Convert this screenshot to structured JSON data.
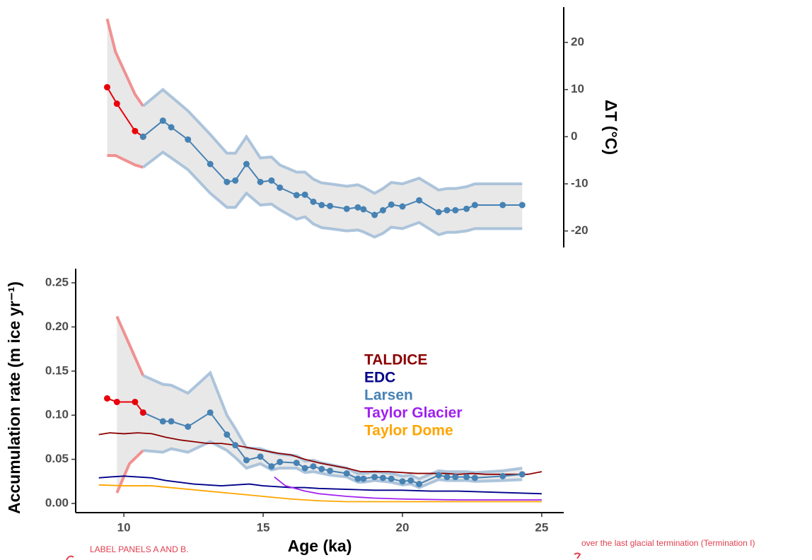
{
  "chart_data": [
    {
      "type": "line",
      "ylabel": "ΔT (°C)",
      "yaxis_side": "right",
      "show_x_axis": false,
      "xlim": [
        8.27,
        25.79
      ],
      "ylim": [
        -23.5,
        27.5
      ],
      "yticks": [
        -20,
        -10,
        0,
        10,
        20
      ],
      "bands": [
        {
          "color": "#f07878",
          "x": [
            9.4,
            9.7,
            10.4,
            10.69
          ],
          "upper": [
            25,
            18,
            9,
            6.5
          ],
          "lower": [
            -4,
            -4,
            -6,
            -6.5
          ]
        },
        {
          "color": "#9ab8d4",
          "x": [
            10.69,
            11.4,
            11.7,
            12.3,
            13.1,
            13.7,
            14.0,
            14.4,
            14.9,
            15.3,
            15.6,
            16.2,
            16.5,
            16.8,
            17.1,
            17.4,
            18.0,
            18.4,
            18.6,
            19.0,
            19.3,
            19.6,
            20.0,
            20.6,
            21.3,
            21.6,
            21.9,
            22.3,
            22.6,
            23.6,
            24.3
          ],
          "upper": [
            6.5,
            10,
            8.5,
            5.5,
            0.5,
            -3.5,
            -3.5,
            0,
            -4.5,
            -4.3,
            -6,
            -7.5,
            -7.5,
            -9,
            -9.8,
            -10,
            -10.5,
            -10.2,
            -10.7,
            -12,
            -11,
            -9.7,
            -10,
            -8.8,
            -11.3,
            -11,
            -11,
            -10.6,
            -10,
            -10,
            -10
          ],
          "lower": [
            -6.5,
            -3.3,
            -4.5,
            -7,
            -12,
            -15,
            -15,
            -12,
            -14.5,
            -14.3,
            -15.5,
            -17.5,
            -17,
            -18.5,
            -19.3,
            -19.5,
            -20,
            -19.8,
            -20.2,
            -21.3,
            -20.5,
            -19.2,
            -19.5,
            -18.2,
            -20.8,
            -20.3,
            -20.3,
            -20,
            -19.5,
            -19.5,
            -19.5
          ]
        }
      ],
      "series": [
        {
          "color": "#e8000b",
          "markers": true,
          "x": [
            9.4,
            9.75,
            10.4,
            10.69
          ],
          "values": [
            10.5,
            7,
            1.2,
            0
          ]
        },
        {
          "color": "#4682b4",
          "markers": true,
          "x": [
            10.69,
            11.4,
            11.7,
            12.3,
            13.1,
            13.7,
            14.0,
            14.4,
            14.9,
            15.3,
            15.6,
            16.2,
            16.5,
            16.8,
            17.1,
            17.4,
            18.0,
            18.4,
            18.6,
            19.0,
            19.3,
            19.6,
            20.0,
            20.6,
            21.3,
            21.6,
            21.9,
            22.3,
            22.6,
            23.6,
            24.3
          ],
          "values": [
            0,
            3.4,
            2,
            -0.6,
            -5.8,
            -9.6,
            -9.3,
            -5.8,
            -9.6,
            -9.3,
            -10.8,
            -12.4,
            -12.3,
            -13.8,
            -14.5,
            -14.7,
            -15.3,
            -15,
            -15.4,
            -16.6,
            -15.6,
            -14.4,
            -14.8,
            -13.5,
            -16,
            -15.6,
            -15.6,
            -15.3,
            -14.5,
            -14.5,
            -14.5
          ]
        }
      ]
    },
    {
      "type": "line",
      "xlabel": "Age (ka)",
      "ylabel": "Accumulation rate (m ice yr⁻¹)",
      "yaxis_side": "left",
      "show_x_axis": true,
      "xlim": [
        8.27,
        25.79
      ],
      "ylim": [
        -0.0104,
        0.266
      ],
      "xticks": [
        10,
        15,
        20,
        25
      ],
      "yticks": [
        {
          "value": 0,
          "label": "0.00"
        },
        0.05,
        {
          "value": 0.1,
          "label": "0.10"
        },
        0.15,
        {
          "value": 0.2,
          "label": "0.20"
        },
        0.25
      ],
      "bands": [
        {
          "color": "#f07878",
          "x": [
            9.75,
            10.2,
            10.69
          ],
          "upper": [
            0.212,
            0.18,
            0.145
          ],
          "lower": [
            0.012,
            0.045,
            0.06
          ]
        },
        {
          "color": "#9ab8d4",
          "x": [
            10.69,
            11.4,
            11.7,
            12.3,
            13.1,
            13.7,
            14.0,
            14.4,
            14.9,
            15.3,
            15.6,
            16.2,
            16.5,
            16.8,
            17.1,
            17.4,
            18.0,
            18.4,
            18.6,
            19.0,
            19.3,
            19.6,
            20.0,
            20.3,
            20.6,
            21.3,
            21.6,
            21.9,
            22.3,
            22.6,
            23.6,
            24.3
          ],
          "upper": [
            0.145,
            0.135,
            0.134,
            0.125,
            0.148,
            0.1,
            0.085,
            0.063,
            0.062,
            0.058,
            0.056,
            0.054,
            0.048,
            0.049,
            0.046,
            0.044,
            0.04,
            0.034,
            0.034,
            0.036,
            0.035,
            0.034,
            0.031,
            0.032,
            0.028,
            0.037,
            0.036,
            0.036,
            0.036,
            0.035,
            0.037,
            0.04
          ],
          "lower": [
            0.06,
            0.058,
            0.062,
            0.058,
            0.07,
            0.06,
            0.052,
            0.04,
            0.045,
            0.038,
            0.04,
            0.04,
            0.035,
            0.036,
            0.034,
            0.032,
            0.03,
            0.024,
            0.024,
            0.026,
            0.025,
            0.024,
            0.021,
            0.022,
            0.018,
            0.027,
            0.026,
            0.026,
            0.026,
            0.025,
            0.026,
            0.027
          ]
        }
      ],
      "series": [
        {
          "name": "TALDICE",
          "color": "#8b0000",
          "markers": false,
          "x": [
            9.1,
            9.5,
            10,
            10.5,
            11,
            11.5,
            12,
            12.5,
            13,
            13.5,
            14,
            14.5,
            15,
            15.5,
            16,
            16.5,
            17,
            17.5,
            18,
            18.5,
            19,
            19.5,
            20,
            20.5,
            21,
            21.5,
            22,
            22.5,
            23,
            23.5,
            24,
            24.5,
            25
          ],
          "values": [
            0.078,
            0.08,
            0.079,
            0.08,
            0.079,
            0.075,
            0.072,
            0.07,
            0.068,
            0.068,
            0.066,
            0.063,
            0.06,
            0.057,
            0.055,
            0.05,
            0.046,
            0.043,
            0.04,
            0.036,
            0.036,
            0.036,
            0.035,
            0.034,
            0.034,
            0.034,
            0.033,
            0.034,
            0.033,
            0.033,
            0.033,
            0.033,
            0.036
          ]
        },
        {
          "name": "EDC",
          "color": "#00008b",
          "markers": false,
          "x": [
            9.1,
            9.5,
            10,
            10.5,
            11,
            11.5,
            12,
            12.5,
            13,
            13.5,
            14,
            14.5,
            15,
            15.5,
            16,
            16.5,
            17,
            18,
            19,
            20,
            21,
            22,
            23,
            24,
            25
          ],
          "values": [
            0.029,
            0.03,
            0.031,
            0.03,
            0.029,
            0.026,
            0.024,
            0.022,
            0.021,
            0.02,
            0.021,
            0.022,
            0.02,
            0.019,
            0.018,
            0.018,
            0.017,
            0.016,
            0.015,
            0.015,
            0.014,
            0.014,
            0.013,
            0.012,
            0.011
          ]
        },
        {
          "name": "Larsen",
          "color": "#4682b4",
          "markers": true,
          "x": [
            10.69,
            11.4,
            11.7,
            12.3,
            13.1,
            13.7,
            14.0,
            14.4,
            14.9,
            15.3,
            15.6,
            16.2,
            16.5,
            16.8,
            17.1,
            17.4,
            18.0,
            18.4,
            18.6,
            19.0,
            19.3,
            19.6,
            20.0,
            20.3,
            20.6,
            21.3,
            21.6,
            21.9,
            22.3,
            22.6,
            23.6,
            24.3
          ],
          "values": [
            0.103,
            0.093,
            0.093,
            0.087,
            0.103,
            0.078,
            0.066,
            0.049,
            0.053,
            0.042,
            0.047,
            0.046,
            0.04,
            0.042,
            0.039,
            0.037,
            0.034,
            0.028,
            0.028,
            0.03,
            0.029,
            0.028,
            0.025,
            0.026,
            0.022,
            0.032,
            0.03,
            0.03,
            0.03,
            0.029,
            0.031,
            0.033
          ]
        },
        {
          "name": "Taylor Glacier",
          "color": "#a020f0",
          "markers": false,
          "x": [
            15.4,
            15.8,
            16.5,
            17,
            18,
            19,
            20,
            22,
            25
          ],
          "values": [
            0.03,
            0.02,
            0.014,
            0.011,
            0.008,
            0.006,
            0.005,
            0.004,
            0.004
          ]
        },
        {
          "name": "Taylor Dome",
          "color": "#ffa500",
          "markers": false,
          "x": [
            9.1,
            10,
            11,
            12,
            13,
            14,
            15,
            16,
            17,
            18,
            20,
            25
          ],
          "values": [
            0.021,
            0.02,
            0.02,
            0.017,
            0.014,
            0.011,
            0.008,
            0.005,
            0.003,
            0.002,
            0.002,
            0.002
          ]
        },
        {
          "color": "#e8000b",
          "markers": true,
          "x": [
            9.4,
            9.75,
            10.4,
            10.69
          ],
          "values": [
            0.119,
            0.115,
            0.115,
            0.103
          ]
        }
      ],
      "annotations": [
        "LABEL PANELS A AND B.",
        "over the last glacial termination (Termination I)"
      ]
    }
  ]
}
